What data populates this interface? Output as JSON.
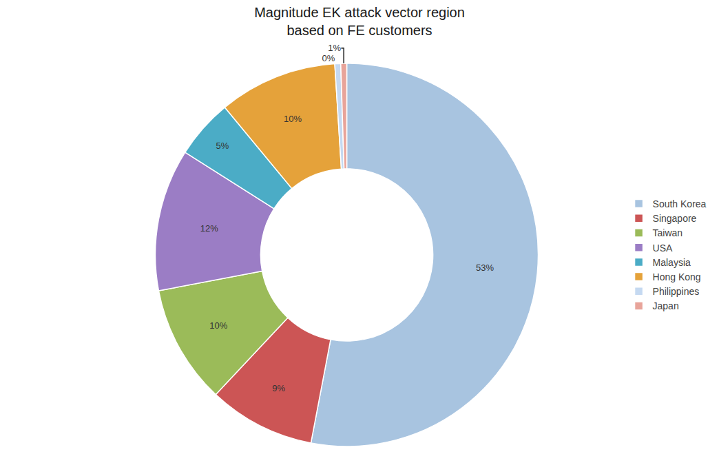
{
  "chart_data": {
    "type": "donut",
    "title": "Magnitude EK attack vector region\nbased on FE customers",
    "categories": [
      "South Korea",
      "Singapore",
      "Taiwan",
      "USA",
      "Malaysia",
      "Hong Kong",
      "Philippines",
      "Japan"
    ],
    "values": [
      53,
      9,
      10,
      12,
      5,
      10,
      0.5,
      0.5
    ],
    "value_labels": [
      "53%",
      "9%",
      "10%",
      "12%",
      "5%",
      "10%",
      "0%",
      "1%"
    ],
    "colors": [
      "#A8C4E0",
      "#CC5555",
      "#9BBB59",
      "#9B7DC5",
      "#4BACC6",
      "#E5A23A",
      "#C5D9F1",
      "#E8A49A"
    ],
    "data_labels": true,
    "legend": "right"
  }
}
